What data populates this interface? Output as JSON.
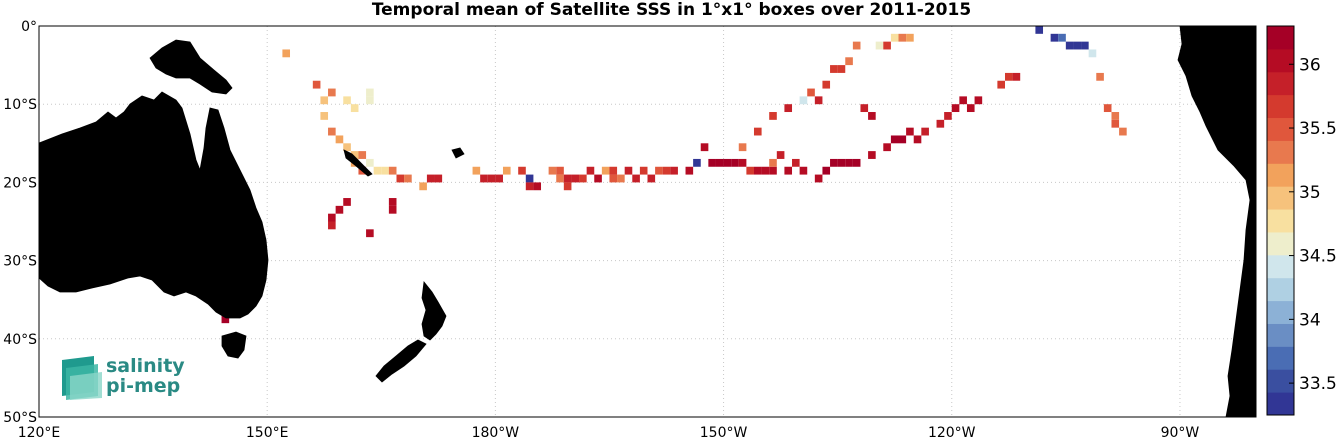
{
  "title": "Temporal mean of Satellite SSS in 1°x1° boxes over 2011-2015",
  "x_ticks": [
    "120°E",
    "150°E",
    "180°W",
    "150°W",
    "120°W",
    "90°W"
  ],
  "y_ticks": [
    "0°",
    "10°S",
    "20°S",
    "30°S",
    "40°S",
    "50°S"
  ],
  "colorbar": {
    "ticks": [
      "36",
      "35.5",
      "35",
      "34.5",
      "34",
      "33.5"
    ],
    "range": [
      33.25,
      36.3
    ],
    "colors": [
      "#313695",
      "#3a4fa0",
      "#4a6db4",
      "#6a8ec4",
      "#8cb1d6",
      "#afd0e3",
      "#d0e6ec",
      "#eeeecc",
      "#f8e0a0",
      "#f6c27c",
      "#f2a25c",
      "#e8794e",
      "#e0573c",
      "#d43a2e",
      "#c52029",
      "#b50c24",
      "#a50026"
    ]
  },
  "logo": {
    "line1": "salinity",
    "line2": "pi-mep"
  },
  "land_color": "#808080",
  "chart_data": {
    "type": "heatmap",
    "title": "Temporal mean of Satellite SSS in 1°x1° boxes over 2011-2015",
    "xlim": [
      120,
      280
    ],
    "ylim": [
      -50,
      0
    ],
    "cells": [
      {
        "lon": 152,
        "lat": -3,
        "v": 35.1
      },
      {
        "lon": 156,
        "lat": -7,
        "v": 35.5
      },
      {
        "lon": 157,
        "lat": -9,
        "v": 35.0
      },
      {
        "lon": 158,
        "lat": -8,
        "v": 35.3
      },
      {
        "lon": 160,
        "lat": -9,
        "v": 34.8
      },
      {
        "lon": 161,
        "lat": -10,
        "v": 34.7
      },
      {
        "lon": 163,
        "lat": -8,
        "v": 34.6
      },
      {
        "lon": 163,
        "lat": -9,
        "v": 34.6
      },
      {
        "lon": 157,
        "lat": -11,
        "v": 35.0
      },
      {
        "lon": 158,
        "lat": -13,
        "v": 35.3
      },
      {
        "lon": 159,
        "lat": -14,
        "v": 35.1
      },
      {
        "lon": 160,
        "lat": -15,
        "v": 35.0
      },
      {
        "lon": 161,
        "lat": -16,
        "v": 34.9
      },
      {
        "lon": 161,
        "lat": -17,
        "v": 35.2
      },
      {
        "lon": 162,
        "lat": -16,
        "v": 35.3
      },
      {
        "lon": 163,
        "lat": -17,
        "v": 34.6
      },
      {
        "lon": 162,
        "lat": -18,
        "v": 35.5
      },
      {
        "lon": 164,
        "lat": -18,
        "v": 34.7
      },
      {
        "lon": 165,
        "lat": -18,
        "v": 34.8
      },
      {
        "lon": 166,
        "lat": -18,
        "v": 35.3
      },
      {
        "lon": 167,
        "lat": -19,
        "v": 35.6
      },
      {
        "lon": 168,
        "lat": -19,
        "v": 35.4
      },
      {
        "lon": 170,
        "lat": -20,
        "v": 35.1
      },
      {
        "lon": 177,
        "lat": -18,
        "v": 35.1
      },
      {
        "lon": 178,
        "lat": -19,
        "v": 35.9
      },
      {
        "lon": 179,
        "lat": -19,
        "v": 35.9
      },
      {
        "lon": 180,
        "lat": -19,
        "v": 35.9
      },
      {
        "lon": 181,
        "lat": -18,
        "v": 35.1
      },
      {
        "lon": 183,
        "lat": -18,
        "v": 35.7
      },
      {
        "lon": 184,
        "lat": -19,
        "v": 33.3
      },
      {
        "lon": 184,
        "lat": -20,
        "v": 35.8
      },
      {
        "lon": 185,
        "lat": -20,
        "v": 36.1
      },
      {
        "lon": 187,
        "lat": -18,
        "v": 35.4
      },
      {
        "lon": 188,
        "lat": -18,
        "v": 35.5
      },
      {
        "lon": 188,
        "lat": -19,
        "v": 35.3
      },
      {
        "lon": 189,
        "lat": -19,
        "v": 35.8
      },
      {
        "lon": 189,
        "lat": -20,
        "v": 35.6
      },
      {
        "lon": 190,
        "lat": -19,
        "v": 35.9
      },
      {
        "lon": 191,
        "lat": -19,
        "v": 35.6
      },
      {
        "lon": 192,
        "lat": -18,
        "v": 35.9
      },
      {
        "lon": 193,
        "lat": -19,
        "v": 36.0
      },
      {
        "lon": 194,
        "lat": -18,
        "v": 35.1
      },
      {
        "lon": 195,
        "lat": -19,
        "v": 35.5
      },
      {
        "lon": 195,
        "lat": -18,
        "v": 35.7
      },
      {
        "lon": 196,
        "lat": -19,
        "v": 35.4
      },
      {
        "lon": 197,
        "lat": -18,
        "v": 35.9
      },
      {
        "lon": 198,
        "lat": -19,
        "v": 35.9
      },
      {
        "lon": 199,
        "lat": -18,
        "v": 35.7
      },
      {
        "lon": 200,
        "lat": -19,
        "v": 35.9
      },
      {
        "lon": 201,
        "lat": -18,
        "v": 35.5
      },
      {
        "lon": 202,
        "lat": -18,
        "v": 35.7
      },
      {
        "lon": 203,
        "lat": -18,
        "v": 35.9
      },
      {
        "lon": 205,
        "lat": -18,
        "v": 36.0
      },
      {
        "lon": 206,
        "lat": -17,
        "v": 33.3
      },
      {
        "lon": 207,
        "lat": -15,
        "v": 36.1
      },
      {
        "lon": 208,
        "lat": -17,
        "v": 36.2
      },
      {
        "lon": 209,
        "lat": -17,
        "v": 36.2
      },
      {
        "lon": 210,
        "lat": -17,
        "v": 36.2
      },
      {
        "lon": 211,
        "lat": -17,
        "v": 36.2
      },
      {
        "lon": 212,
        "lat": -17,
        "v": 36.0
      },
      {
        "lon": 213,
        "lat": -18,
        "v": 35.7
      },
      {
        "lon": 214,
        "lat": -18,
        "v": 36.0
      },
      {
        "lon": 215,
        "lat": -18,
        "v": 36.0
      },
      {
        "lon": 216,
        "lat": -18,
        "v": 36.0
      },
      {
        "lon": 216,
        "lat": -17,
        "v": 35.3
      },
      {
        "lon": 218,
        "lat": -18,
        "v": 36.0
      },
      {
        "lon": 217,
        "lat": -16,
        "v": 35.9
      },
      {
        "lon": 219,
        "lat": -17,
        "v": 35.9
      },
      {
        "lon": 220,
        "lat": -18,
        "v": 36.1
      },
      {
        "lon": 222,
        "lat": -19,
        "v": 36.1
      },
      {
        "lon": 223,
        "lat": -18,
        "v": 36.2
      },
      {
        "lon": 224,
        "lat": -17,
        "v": 36.2
      },
      {
        "lon": 225,
        "lat": -17,
        "v": 36.2
      },
      {
        "lon": 226,
        "lat": -17,
        "v": 36.2
      },
      {
        "lon": 227,
        "lat": -17,
        "v": 36.2
      },
      {
        "lon": 229,
        "lat": -16,
        "v": 36.1
      },
      {
        "lon": 212,
        "lat": -15,
        "v": 35.4
      },
      {
        "lon": 214,
        "lat": -13,
        "v": 35.6
      },
      {
        "lon": 216,
        "lat": -11,
        "v": 35.7
      },
      {
        "lon": 218,
        "lat": -10,
        "v": 35.8
      },
      {
        "lon": 220,
        "lat": -9,
        "v": 34.4
      },
      {
        "lon": 221,
        "lat": -8,
        "v": 35.5
      },
      {
        "lon": 222,
        "lat": -9,
        "v": 35.9
      },
      {
        "lon": 223,
        "lat": -7,
        "v": 35.6
      },
      {
        "lon": 224,
        "lat": -5,
        "v": 35.7
      },
      {
        "lon": 225,
        "lat": -5,
        "v": 35.7
      },
      {
        "lon": 226,
        "lat": -4,
        "v": 35.4
      },
      {
        "lon": 227,
        "lat": -2,
        "v": 35.4
      },
      {
        "lon": 228,
        "lat": -10,
        "v": 35.9
      },
      {
        "lon": 229,
        "lat": -11,
        "v": 36.0
      },
      {
        "lon": 230,
        "lat": -2,
        "v": 34.6
      },
      {
        "lon": 231,
        "lat": -2,
        "v": 35.6
      },
      {
        "lon": 232,
        "lat": -1,
        "v": 34.7
      },
      {
        "lon": 233,
        "lat": -1,
        "v": 35.3
      },
      {
        "lon": 234,
        "lat": -1,
        "v": 35.1
      },
      {
        "lon": 231,
        "lat": -15,
        "v": 36.1
      },
      {
        "lon": 232,
        "lat": -14,
        "v": 36.3
      },
      {
        "lon": 233,
        "lat": -14,
        "v": 36.2
      },
      {
        "lon": 234,
        "lat": -13,
        "v": 36.0
      },
      {
        "lon": 235,
        "lat": -14,
        "v": 36.1
      },
      {
        "lon": 236,
        "lat": -13,
        "v": 35.9
      },
      {
        "lon": 238,
        "lat": -12,
        "v": 35.8
      },
      {
        "lon": 239,
        "lat": -11,
        "v": 35.9
      },
      {
        "lon": 240,
        "lat": -10,
        "v": 36.0
      },
      {
        "lon": 241,
        "lat": -9,
        "v": 36.1
      },
      {
        "lon": 242,
        "lat": -10,
        "v": 36.1
      },
      {
        "lon": 243,
        "lat": -9,
        "v": 36.0
      },
      {
        "lon": 246,
        "lat": -7,
        "v": 35.6
      },
      {
        "lon": 247,
        "lat": -6,
        "v": 35.7
      },
      {
        "lon": 248,
        "lat": -6,
        "v": 35.9
      },
      {
        "lon": 171,
        "lat": -19,
        "v": 35.8
      },
      {
        "lon": 172,
        "lat": -19,
        "v": 35.8
      },
      {
        "lon": 158,
        "lat": -24,
        "v": 36.0
      },
      {
        "lon": 159,
        "lat": -23,
        "v": 36.0
      },
      {
        "lon": 160,
        "lat": -22,
        "v": 36.0
      },
      {
        "lon": 158,
        "lat": -25,
        "v": 35.9
      },
      {
        "lon": 163,
        "lat": -26,
        "v": 36.0
      },
      {
        "lon": 166,
        "lat": -23,
        "v": 36.1
      },
      {
        "lon": 166,
        "lat": -22,
        "v": 36.1
      },
      {
        "lon": 145,
        "lat": -35,
        "v": 36.2
      },
      {
        "lon": 146,
        "lat": -34,
        "v": 36.2
      },
      {
        "lon": 147,
        "lat": -33,
        "v": 36.2
      },
      {
        "lon": 144,
        "lat": -36,
        "v": 36.2
      },
      {
        "lon": 144,
        "lat": -37,
        "v": 36.3
      },
      {
        "lon": 145,
        "lat": -36,
        "v": 36.1
      },
      {
        "lon": 148,
        "lat": -33,
        "v": 35.9
      },
      {
        "lon": 251,
        "lat": 0,
        "v": 33.3
      },
      {
        "lon": 253,
        "lat": -1,
        "v": 33.2
      },
      {
        "lon": 254,
        "lat": -1,
        "v": 33.7
      },
      {
        "lon": 255,
        "lat": -2,
        "v": 33.4
      },
      {
        "lon": 256,
        "lat": -2,
        "v": 33.3
      },
      {
        "lon": 257,
        "lat": -2,
        "v": 33.4
      },
      {
        "lon": 258,
        "lat": -3,
        "v": 34.4
      },
      {
        "lon": 259,
        "lat": -6,
        "v": 35.3
      },
      {
        "lon": 260,
        "lat": -10,
        "v": 35.5
      },
      {
        "lon": 261,
        "lat": -11,
        "v": 35.3
      },
      {
        "lon": 261,
        "lat": -12,
        "v": 35.5
      },
      {
        "lon": 262,
        "lat": -13,
        "v": 35.3
      }
    ]
  }
}
